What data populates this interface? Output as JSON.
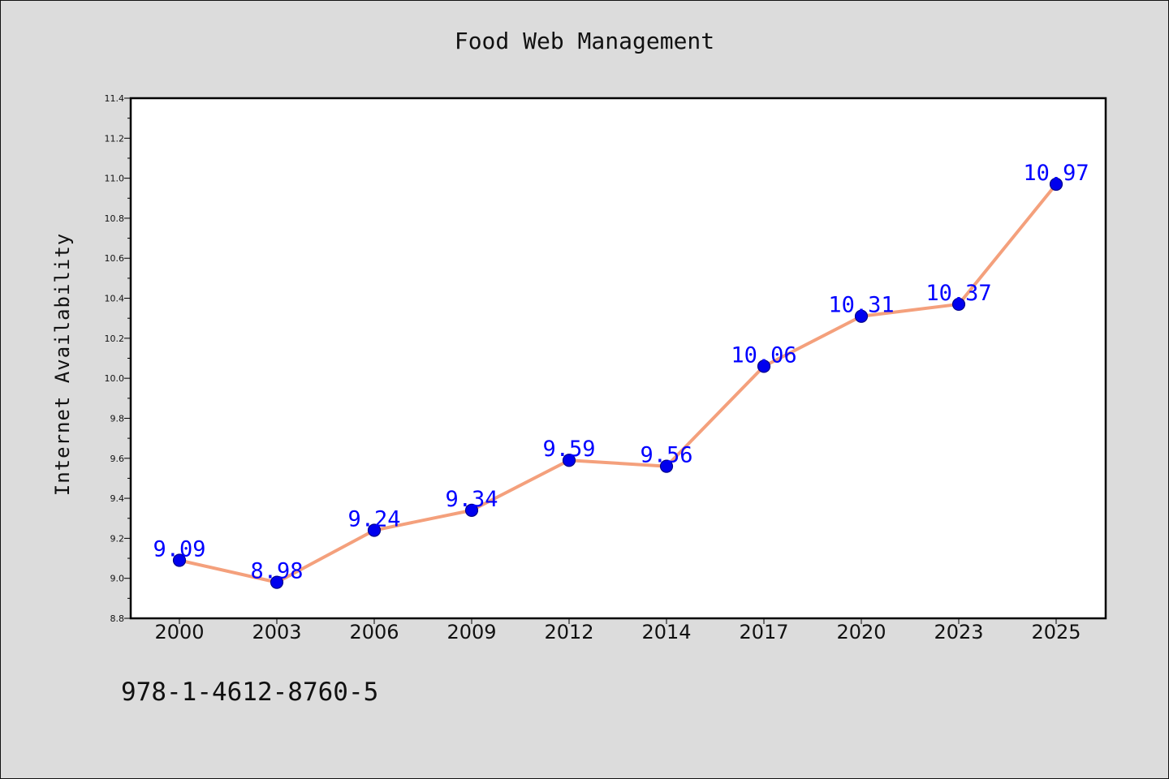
{
  "chart_data": {
    "type": "line",
    "title": "Food Web Management",
    "xlabel": "",
    "ylabel": "Internet Availability",
    "categories": [
      "2000",
      "2003",
      "2006",
      "2009",
      "2012",
      "2014",
      "2017",
      "2020",
      "2023",
      "2025"
    ],
    "series": [
      {
        "values": [
          9.09,
          8.98,
          9.24,
          9.34,
          9.59,
          9.56,
          10.06,
          10.31,
          10.37,
          10.97
        ],
        "labels": [
          "9.09",
          "8.98",
          "9.24",
          "9.34",
          "9.59",
          "9.56",
          "10.06",
          "10.31",
          "10.37",
          "10.97"
        ]
      }
    ],
    "ylim": [
      8.8,
      11.4
    ],
    "yticks": [
      "8.8",
      "9.0",
      "9.2",
      "9.4",
      "9.6",
      "9.8",
      "10.0",
      "10.2",
      "10.4",
      "10.6",
      "10.8",
      "11.0",
      "11.2",
      "11.4"
    ],
    "grid": false,
    "colors": {
      "line": "#f4a07c",
      "marker": "#0000ee",
      "marker_edge": "#00008b",
      "label": "#0000ff"
    }
  },
  "footer": {
    "code": "978-1-4612-8760-5"
  }
}
